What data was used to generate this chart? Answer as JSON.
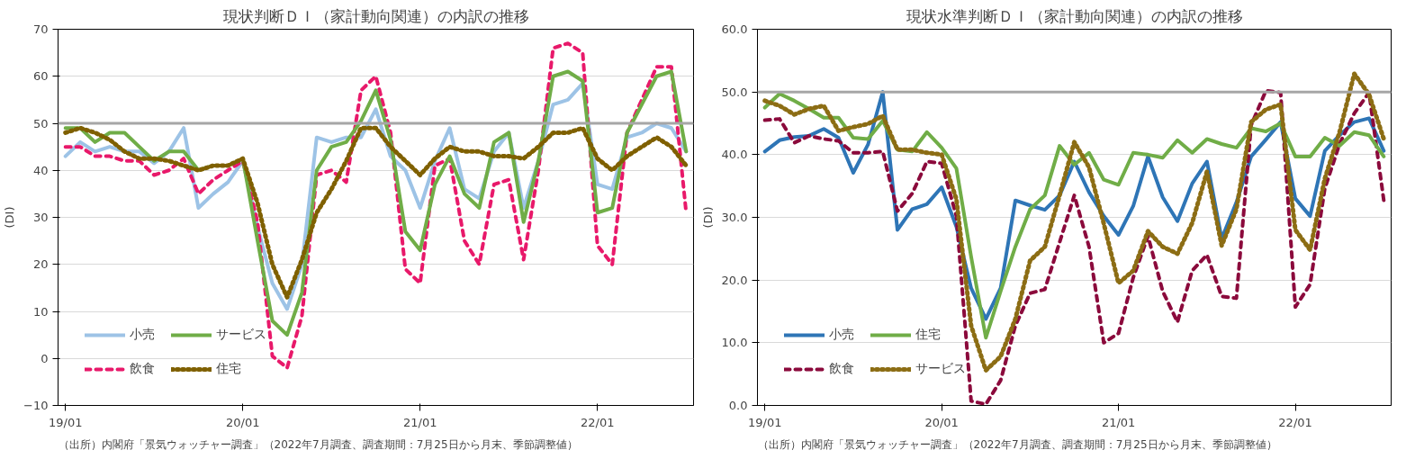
{
  "chart_data": [
    {
      "type": "line",
      "title": "現状判断ＤＩ（家計動向関連）の内訳の推移",
      "ylabel": "(DI)",
      "categories": [
        "19/01",
        null,
        null,
        null,
        null,
        null,
        null,
        null,
        null,
        null,
        null,
        null,
        "20/01",
        null,
        null,
        null,
        null,
        null,
        null,
        null,
        null,
        null,
        null,
        null,
        "21/01",
        null,
        null,
        null,
        null,
        null,
        null,
        null,
        null,
        null,
        null,
        null,
        "22/01",
        null,
        null,
        null,
        null,
        null,
        null
      ],
      "ylim": [
        -10,
        70
      ],
      "yticks": [
        -10,
        0,
        10,
        20,
        30,
        40,
        50,
        60,
        70
      ],
      "grid": "y",
      "legend": "bottom left",
      "ref_lines": [
        {
          "axis": "y",
          "value": 50,
          "color": "#a6a6a6"
        }
      ],
      "annotations": [
        "（出所）内閣府「景気ウォッチャー調査」（2022年7月調査、調査期間：7月25日から月末、季節調整値）"
      ],
      "series": [
        {
          "name": "小売",
          "color": "#9dc3e6",
          "line_style": "solid",
          "values": [
            43,
            46,
            44,
            45,
            44,
            44,
            41.5,
            44,
            49,
            32,
            35,
            37.5,
            42,
            28,
            16,
            10.5,
            20,
            47,
            46,
            47,
            47,
            53,
            43,
            40,
            32,
            42,
            49,
            36,
            34,
            44,
            48,
            32,
            42,
            54,
            55,
            58.5,
            37,
            36,
            47,
            48,
            50,
            49,
            44
          ]
        },
        {
          "name": "飲食",
          "color": "#e8196a",
          "line_style": "dashed",
          "values": [
            45,
            45,
            43,
            43,
            42,
            42,
            39,
            40,
            42.5,
            35,
            38,
            40,
            42,
            29,
            0.5,
            -2,
            9,
            39,
            40,
            37.5,
            57,
            60,
            48,
            19,
            16,
            41,
            42.5,
            25,
            20,
            37,
            38,
            21,
            40,
            66,
            67,
            65,
            24,
            20,
            48,
            55,
            62,
            62,
            31
          ]
        },
        {
          "name": "サービス",
          "color": "#70ad47",
          "line_style": "solid",
          "values": [
            49,
            49,
            46,
            48,
            48,
            45,
            42,
            44,
            44,
            40,
            41,
            41,
            42.5,
            25,
            8,
            5,
            14,
            40,
            45,
            46,
            50.5,
            57,
            46.5,
            27,
            23,
            37,
            43,
            35,
            32,
            46,
            48,
            29,
            42,
            60,
            61,
            59,
            31,
            32,
            48,
            54,
            60,
            61,
            44
          ]
        },
        {
          "name": "住宅",
          "color": "#7f6000",
          "line_style": "dotted",
          "values": [
            48,
            49,
            48,
            46.5,
            44,
            42.5,
            42.5,
            42,
            41,
            40,
            41,
            41,
            42.5,
            33,
            20,
            13,
            21,
            31,
            36,
            42,
            49,
            49,
            45,
            42,
            39,
            42.5,
            45,
            44,
            44,
            43,
            43,
            42.5,
            45,
            48,
            48,
            49,
            42.5,
            40,
            43,
            45,
            47,
            45,
            41
          ]
        }
      ]
    },
    {
      "type": "line",
      "title": "現状水準判断ＤＩ（家計動向関連）の内訳の推移",
      "ylabel": "(DI)",
      "categories": [
        "19/01",
        null,
        null,
        null,
        null,
        null,
        null,
        null,
        null,
        null,
        null,
        null,
        "20/01",
        null,
        null,
        null,
        null,
        null,
        null,
        null,
        null,
        null,
        null,
        null,
        "21/01",
        null,
        null,
        null,
        null,
        null,
        null,
        null,
        null,
        null,
        null,
        null,
        "22/01",
        null,
        null,
        null,
        null,
        null,
        null
      ],
      "ylim": [
        0,
        60
      ],
      "yticks": [
        {
          "value": 0,
          "label": "0.0"
        },
        {
          "value": 10,
          "label": "10.0"
        },
        {
          "value": 20,
          "label": "20.0"
        },
        {
          "value": 30,
          "label": "30.0"
        },
        {
          "value": 40,
          "label": "40.0"
        },
        {
          "value": 50,
          "label": "50.0"
        },
        {
          "value": 60,
          "label": "60.0"
        }
      ],
      "grid": "y",
      "legend": "bottom left",
      "ref_lines": [
        {
          "axis": "y",
          "value": 50,
          "color": "#a6a6a6"
        }
      ],
      "annotations": [
        "（出所）内閣府「景気ウォッチャー調査」（2022年7月調査、調査期間：7月25日から月末、季節調整値）"
      ],
      "series": [
        {
          "name": "小売",
          "color": "#2e75b6",
          "line_style": "solid",
          "values": [
            40.5,
            42.3,
            42.8,
            43,
            44.1,
            42.7,
            37.1,
            41.6,
            50,
            28,
            31.3,
            32.1,
            34.8,
            28.5,
            18.7,
            13.8,
            18.7,
            32.7,
            31.9,
            31.2,
            33.5,
            38.9,
            34,
            30.2,
            27.2,
            31.8,
            39.7,
            33.2,
            29.4,
            35.4,
            38.9,
            26.6,
            32.4,
            39.7,
            42.4,
            45.2,
            33,
            30.2,
            40.6,
            43.1,
            45.2,
            45.8,
            40.6
          ]
        },
        {
          "name": "飲食",
          "color": "#8b0a3c",
          "line_style": "dashed",
          "values": [
            45.5,
            45.7,
            41.9,
            43,
            42.5,
            42.2,
            40.3,
            40.3,
            40.5,
            31,
            33.8,
            38.9,
            38.6,
            30.2,
            0.7,
            0.2,
            4,
            12.7,
            17.9,
            18.5,
            26,
            33.5,
            25.3,
            10,
            11.5,
            20.4,
            27,
            18.2,
            13.3,
            21.5,
            24,
            17.4,
            17.1,
            44.7,
            50.2,
            49.9,
            15.7,
            19.3,
            34.6,
            41.7,
            46.6,
            49.9,
            32.7
          ]
        },
        {
          "name": "住宅",
          "color": "#70ad47",
          "line_style": "solid",
          "values": [
            47.5,
            49.7,
            48.6,
            47.3,
            45.9,
            45.9,
            42.7,
            42.5,
            45.4,
            40.8,
            40.5,
            43.6,
            41.1,
            37.8,
            23.7,
            10.8,
            18.2,
            25.3,
            31.3,
            33.5,
            41.4,
            38.4,
            40.3,
            36,
            35.2,
            40.3,
            40,
            39.5,
            42.3,
            40.3,
            42.5,
            41.7,
            41.1,
            44.2,
            43.7,
            45,
            39.7,
            39.7,
            42.7,
            41.4,
            43.6,
            43.1,
            39.7
          ]
        },
        {
          "name": "サービス",
          "color": "#8c6d14",
          "line_style": "dotted",
          "values": [
            48.6,
            47.8,
            46.4,
            47.3,
            47.8,
            43.8,
            44.4,
            44.9,
            46.2,
            40.8,
            40.8,
            40.3,
            40,
            32.9,
            12.7,
            5.6,
            7.8,
            13.8,
            23.1,
            25.3,
            33.5,
            42,
            38,
            29,
            19.5,
            21.5,
            27.8,
            25.3,
            24.2,
            29.1,
            37.3,
            25.5,
            31.3,
            45.2,
            47.2,
            48,
            28,
            24.8,
            36.2,
            43.6,
            52.9,
            49.6,
            42.5
          ]
        }
      ]
    }
  ]
}
